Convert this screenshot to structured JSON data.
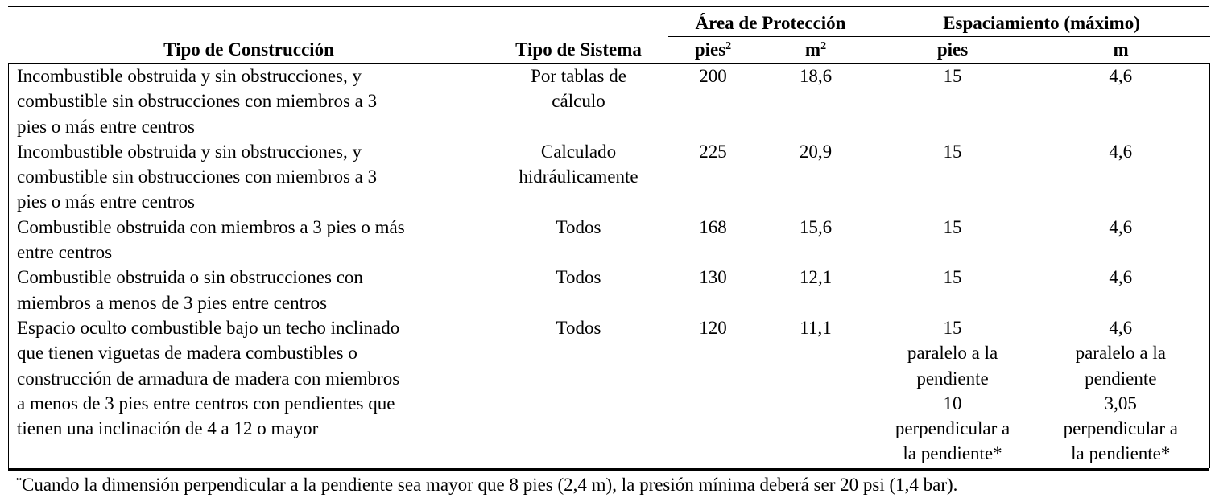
{
  "table": {
    "group_headers": {
      "area": "Área de Protección",
      "spacing": "Espaciamiento (máximo)"
    },
    "columns": {
      "construction": "Tipo de Construcción",
      "system": "Tipo de Sistema",
      "area_ft": "pies",
      "area_ft_sup": "2",
      "area_m": "m",
      "area_m_sup": "2",
      "spacing_ft": "pies",
      "spacing_m": "m"
    },
    "rows": [
      {
        "construction": [
          "Incombustible obstruida y sin obstrucciones, y",
          "combustible sin obstrucciones con miembros a 3",
          "pies o más entre centros"
        ],
        "system": [
          "Por tablas de",
          "cálculo"
        ],
        "area_ft": "200",
        "area_m": "18,6",
        "spacing_ft": [
          "15"
        ],
        "spacing_m": [
          "4,6"
        ]
      },
      {
        "construction": [
          "Incombustible obstruida y sin obstrucciones, y",
          "combustible sin obstrucciones con miembros a 3",
          "pies o más entre centros"
        ],
        "system": [
          "Calculado",
          "hidráulicamente"
        ],
        "area_ft": "225",
        "area_m": "20,9",
        "spacing_ft": [
          "15"
        ],
        "spacing_m": [
          "4,6"
        ]
      },
      {
        "construction": [
          "Combustible obstruida con miembros a 3 pies o más",
          "entre centros"
        ],
        "system": [
          "Todos"
        ],
        "area_ft": "168",
        "area_m": "15,6",
        "spacing_ft": [
          "15"
        ],
        "spacing_m": [
          "4,6"
        ]
      },
      {
        "construction": [
          "Combustible obstruida o sin obstrucciones con",
          "miembros a menos de 3 pies entre centros"
        ],
        "system": [
          "Todos"
        ],
        "area_ft": "130",
        "area_m": "12,1",
        "spacing_ft": [
          "15"
        ],
        "spacing_m": [
          "4,6"
        ]
      },
      {
        "construction": [
          "Espacio oculto combustible bajo un techo inclinado",
          "que tienen viguetas de madera combustibles o",
          "construcción de armadura de madera con miembros",
          "a menos de 3 pies entre centros con pendientes que",
          "tienen una inclinación de 4 a 12 o mayor"
        ],
        "system": [
          "Todos"
        ],
        "area_ft": "120",
        "area_m": "11,1",
        "spacing_ft": [
          "15",
          "paralelo a la",
          "pendiente",
          "10",
          "perpendicular a",
          "la pendiente*"
        ],
        "spacing_m": [
          "4,6",
          "paralelo a la",
          "pendiente",
          "3,05",
          "perpendicular a",
          "la pendiente*"
        ]
      }
    ]
  },
  "footnote": {
    "mark": "*",
    "text": "Cuando la dimensión perpendicular a la pendiente sea mayor que 8 pies (2,4 m), la presión mínima deberá ser 20 psi (1,4 bar)."
  }
}
